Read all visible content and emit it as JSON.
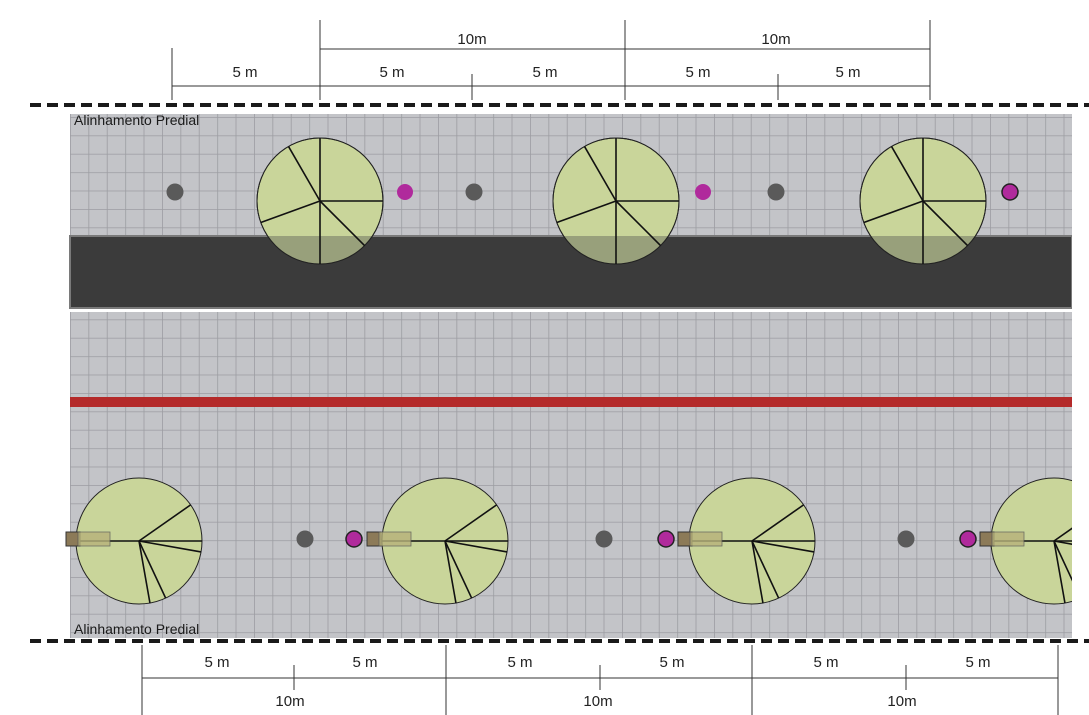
{
  "labels": {
    "building_line_top": "Alinhamento Predial",
    "building_line_bottom": "Alinhamento Predial"
  },
  "dimensions": {
    "top_five": [
      "5 m",
      "5 m",
      "5 m",
      "5 m",
      "5 m"
    ],
    "top_ten": [
      "10m",
      "10m"
    ],
    "bottom_five": [
      "5 m",
      "5 m",
      "5 m",
      "5 m",
      "5 m",
      "5 m"
    ],
    "bottom_ten": [
      "10m",
      "10m",
      "10m"
    ]
  },
  "colors": {
    "pavement": "#c3c4c8",
    "paving_grid": "#9c9da2",
    "road": "#3b3b3b",
    "road_edge": "#8a8a8a",
    "red_line": "#b42a2a",
    "tree_canopy": "#c9d59a",
    "tree_shadow": "#8f9676",
    "light_pole": "#5a5a5a",
    "magenta_element": "#b02a9c",
    "bench": "#8c7a58",
    "bench_overlay": "#b7b27a",
    "dashed_line": "#1a1a1a"
  },
  "legend_icons": {
    "tree": "tree-canopy-icon",
    "pole": "light-pole-icon",
    "magenta": "magenta-post-icon",
    "bench": "bench-icon"
  }
}
